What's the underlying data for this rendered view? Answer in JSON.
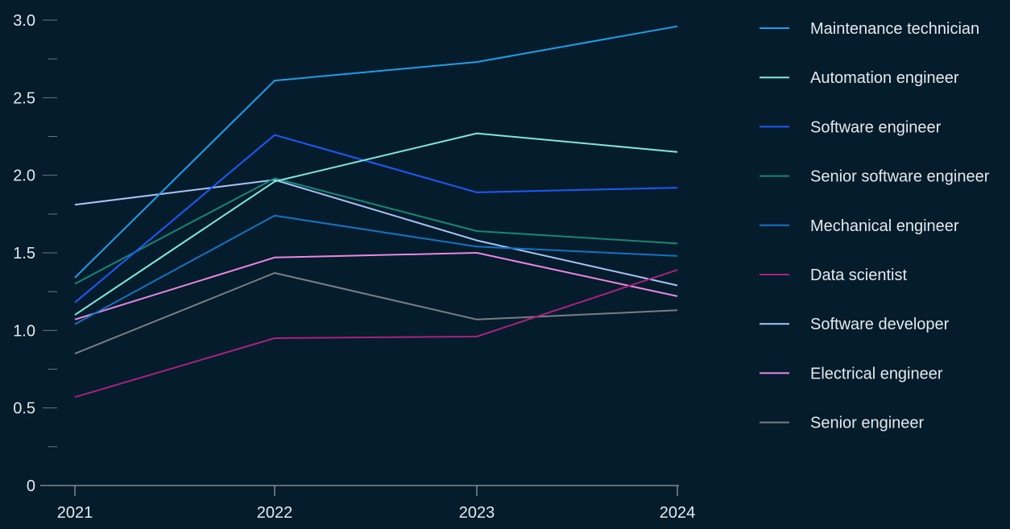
{
  "chart_data": {
    "type": "line",
    "title": "",
    "xlabel": "",
    "ylabel": "",
    "x": [
      "2021",
      "2022",
      "2023",
      "2024"
    ],
    "ylim": [
      0,
      3.0
    ],
    "yticks": [
      "0",
      "0.5",
      "1.0",
      "1.5",
      "2.0",
      "2.5",
      "3.0"
    ],
    "grid": false,
    "legend_position": "right",
    "series": [
      {
        "name": "Maintenance technician",
        "color": "#1f9ee8",
        "values": [
          1.34,
          2.61,
          2.73,
          2.96
        ]
      },
      {
        "name": "Automation engineer",
        "color": "#7ee8dc",
        "values": [
          1.1,
          1.96,
          2.27,
          2.15
        ]
      },
      {
        "name": "Software engineer",
        "color": "#1a5cf5",
        "values": [
          1.18,
          2.26,
          1.89,
          1.92
        ]
      },
      {
        "name": "Senior software engineer",
        "color": "#16857a",
        "values": [
          1.3,
          1.98,
          1.64,
          1.56
        ]
      },
      {
        "name": "Mechanical engineer",
        "color": "#1373c2",
        "values": [
          1.04,
          1.74,
          1.54,
          1.48
        ]
      },
      {
        "name": "Data scientist",
        "color": "#a8227e",
        "values": [
          0.57,
          0.95,
          0.96,
          1.39
        ]
      },
      {
        "name": "Software developer",
        "color": "#a8c4f7",
        "values": [
          1.81,
          1.97,
          1.58,
          1.29
        ]
      },
      {
        "name": "Electrical engineer",
        "color": "#ea87e2",
        "values": [
          1.07,
          1.47,
          1.5,
          1.22
        ]
      },
      {
        "name": "Senior engineer",
        "color": "#7a7e82",
        "values": [
          0.85,
          1.37,
          1.07,
          1.13
        ]
      }
    ]
  }
}
